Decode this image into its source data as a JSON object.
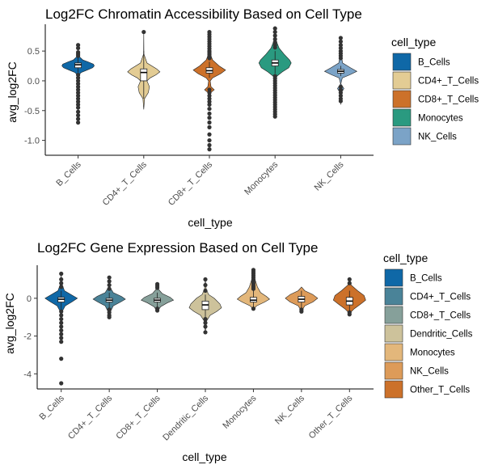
{
  "chart_data": [
    {
      "type": "violin",
      "title": "Log2FC Chromatin Accessibility Based on Cell Type",
      "xlabel": "cell_type",
      "ylabel": "avg_log2FC",
      "yticks": [
        "0.5",
        "0.0",
        "-0.5",
        "-1.0"
      ],
      "ytick_values": [
        0.5,
        0.0,
        -0.5,
        -1.0
      ],
      "ylim": [
        -1.25,
        0.95
      ],
      "grid": false,
      "legend_title": "cell_type",
      "legend_position": "right",
      "categories": [
        "B_Cells",
        "CD4+_T_Cells",
        "CD8+_T_Cells",
        "Monocytes",
        "NK_Cells"
      ],
      "colors": [
        "#0f68a7",
        "#e3cc94",
        "#cc712a",
        "#2a9a80",
        "#7ba3c7"
      ],
      "series": [
        {
          "category": "B_Cells",
          "median": 0.27,
          "q1": 0.22,
          "q3": 0.3,
          "whisker_low": 0.14,
          "whisker_high": 0.39,
          "violin": [
            [
              0.5,
              0.0
            ],
            [
              0.45,
              0.02
            ],
            [
              0.4,
              0.1
            ],
            [
              0.35,
              0.3
            ],
            [
              0.32,
              0.6
            ],
            [
              0.28,
              0.95
            ],
            [
              0.25,
              1.0
            ],
            [
              0.22,
              0.9
            ],
            [
              0.18,
              0.55
            ],
            [
              0.14,
              0.2
            ],
            [
              0.1,
              0.05
            ],
            [
              -0.2,
              0.03
            ],
            [
              -0.6,
              0.0
            ]
          ],
          "outliers": [
            0.6,
            0.55,
            0.48,
            0.45,
            0.42,
            0.1,
            0.05,
            0.0,
            -0.05,
            -0.1,
            -0.15,
            -0.2,
            -0.25,
            -0.3,
            -0.35,
            -0.4,
            -0.45,
            -0.52,
            -0.58,
            -0.64,
            -0.7
          ]
        },
        {
          "category": "CD4+_T_Cells",
          "median": 0.14,
          "q1": 0.0,
          "q3": 0.2,
          "whisker_low": -0.3,
          "whisker_high": 0.5,
          "violin": [
            [
              0.82,
              0.0
            ],
            [
              0.45,
              0.01
            ],
            [
              0.3,
              0.2
            ],
            [
              0.2,
              0.8
            ],
            [
              0.15,
              1.0
            ],
            [
              0.1,
              0.75
            ],
            [
              0.05,
              0.4
            ],
            [
              0.0,
              0.2
            ],
            [
              -0.1,
              0.35
            ],
            [
              -0.2,
              0.28
            ],
            [
              -0.3,
              0.05
            ],
            [
              -0.48,
              0.0
            ]
          ],
          "outliers": [
            0.82
          ]
        },
        {
          "category": "CD8+_T_Cells",
          "median": 0.17,
          "q1": 0.13,
          "q3": 0.22,
          "whisker_low": 0.05,
          "whisker_high": 0.32,
          "violin": [
            [
              0.8,
              0.0
            ],
            [
              0.6,
              0.02
            ],
            [
              0.45,
              0.05
            ],
            [
              0.35,
              0.2
            ],
            [
              0.25,
              0.6
            ],
            [
              0.18,
              1.0
            ],
            [
              0.12,
              0.7
            ],
            [
              0.05,
              0.2
            ],
            [
              0.0,
              0.05
            ],
            [
              -0.1,
              0.1
            ],
            [
              -0.15,
              0.3
            ],
            [
              -0.2,
              0.08
            ],
            [
              -0.3,
              0.02
            ],
            [
              -0.4,
              0.0
            ]
          ],
          "outliers": [
            0.82,
            0.78,
            0.74,
            0.7,
            0.66,
            0.62,
            0.58,
            0.54,
            0.5,
            0.47,
            0.44,
            0.41,
            0.38,
            -0.15,
            -0.2,
            -0.25,
            -0.3,
            -0.35,
            -0.4,
            -0.47,
            -0.55,
            -0.62,
            -0.7,
            -0.78,
            -0.9,
            -1.0,
            -1.08,
            -1.15
          ]
        },
        {
          "category": "Monocytes",
          "median": 0.3,
          "q1": 0.25,
          "q3": 0.35,
          "whisker_low": 0.12,
          "whisker_high": 0.5,
          "violin": [
            [
              0.9,
              0.0
            ],
            [
              0.7,
              0.03
            ],
            [
              0.55,
              0.25
            ],
            [
              0.45,
              0.55
            ],
            [
              0.35,
              0.9
            ],
            [
              0.3,
              1.0
            ],
            [
              0.22,
              0.85
            ],
            [
              0.15,
              0.45
            ],
            [
              0.08,
              0.12
            ],
            [
              0.0,
              0.04
            ],
            [
              -0.3,
              0.01
            ],
            [
              -0.6,
              0.0
            ]
          ],
          "outliers": [
            0.88,
            0.82,
            0.76,
            0.7,
            0.65,
            0.6,
            0.56,
            0.08,
            0.04,
            0.0,
            -0.04,
            -0.08,
            -0.12,
            -0.16,
            -0.2,
            -0.24,
            -0.28,
            -0.32,
            -0.36,
            -0.4,
            -0.44,
            -0.48,
            -0.52,
            -0.56,
            -0.6
          ]
        },
        {
          "category": "NK_Cells",
          "median": 0.16,
          "q1": 0.13,
          "q3": 0.19,
          "whisker_low": 0.08,
          "whisker_high": 0.25,
          "violin": [
            [
              0.7,
              0.0
            ],
            [
              0.45,
              0.02
            ],
            [
              0.3,
              0.12
            ],
            [
              0.22,
              0.6
            ],
            [
              0.16,
              1.0
            ],
            [
              0.1,
              0.55
            ],
            [
              0.05,
              0.1
            ],
            [
              -0.05,
              0.01
            ],
            [
              -0.13,
              0.2
            ],
            [
              -0.2,
              0.04
            ],
            [
              -0.4,
              0.0
            ]
          ],
          "outliers": [
            0.72,
            0.66,
            0.6,
            0.55,
            0.5,
            0.46,
            0.42,
            0.38,
            -0.1,
            -0.15,
            -0.2,
            -0.25,
            -0.3,
            -0.34
          ]
        }
      ]
    },
    {
      "type": "violin",
      "title": "Log2FC Gene Expression Based on Cell Type",
      "xlabel": "cell_type",
      "ylabel": "avg_log2FC",
      "yticks": [
        "0",
        "-2",
        "-4"
      ],
      "ytick_values": [
        0,
        -2,
        -4
      ],
      "ylim": [
        -4.8,
        1.75
      ],
      "grid": false,
      "legend_title": "cell_type",
      "legend_position": "right",
      "categories": [
        "B_Cells",
        "CD4+_T_Cells",
        "CD8+_T_Cells",
        "Dendritic_Cells",
        "Monocytes",
        "NK_Cells",
        "Other_T_Cells"
      ],
      "colors": [
        "#0f68a7",
        "#4a8398",
        "#86a09a",
        "#cdc29b",
        "#e3b77b",
        "#dd9b59",
        "#cc712a"
      ],
      "series": [
        {
          "category": "B_Cells",
          "median": -0.05,
          "q1": -0.2,
          "q3": 0.05,
          "whisker_low": -0.6,
          "whisker_high": 0.4,
          "violin": [
            [
              1.3,
              0.0
            ],
            [
              0.8,
              0.03
            ],
            [
              0.4,
              0.2
            ],
            [
              0.15,
              0.7
            ],
            [
              0.0,
              1.0
            ],
            [
              -0.2,
              0.65
            ],
            [
              -0.4,
              0.25
            ],
            [
              -0.7,
              0.06
            ],
            [
              -1.2,
              0.0
            ]
          ],
          "outliers": [
            1.3,
            1.0,
            0.8,
            0.6,
            -0.7,
            -0.9,
            -1.1,
            -1.3,
            -1.5,
            -1.7,
            -1.9,
            -2.1,
            -2.3,
            -3.2,
            -4.5
          ]
        },
        {
          "category": "CD4+_T_Cells",
          "median": -0.1,
          "q1": -0.2,
          "q3": 0.0,
          "whisker_low": -0.5,
          "whisker_high": 0.3,
          "violin": [
            [
              1.1,
              0.0
            ],
            [
              0.6,
              0.04
            ],
            [
              0.3,
              0.25
            ],
            [
              0.1,
              0.75
            ],
            [
              -0.05,
              1.0
            ],
            [
              -0.2,
              0.7
            ],
            [
              -0.4,
              0.25
            ],
            [
              -0.7,
              0.08
            ],
            [
              -1.0,
              0.0
            ]
          ],
          "outliers": [
            1.1,
            0.9,
            0.7,
            0.5,
            -0.6,
            -0.75,
            -0.9,
            -1.0
          ]
        },
        {
          "category": "CD8+_T_Cells",
          "median": -0.1,
          "q1": -0.2,
          "q3": 0.0,
          "whisker_low": -0.5,
          "whisker_high": 0.3,
          "violin": [
            [
              0.8,
              0.0
            ],
            [
              0.5,
              0.05
            ],
            [
              0.25,
              0.3
            ],
            [
              0.05,
              0.8
            ],
            [
              -0.1,
              1.0
            ],
            [
              -0.25,
              0.6
            ],
            [
              -0.45,
              0.2
            ],
            [
              -0.7,
              0.0
            ]
          ],
          "outliers": [
            0.75,
            0.65,
            0.55,
            -0.55,
            -0.65
          ]
        },
        {
          "category": "Dendritic_Cells",
          "median": -0.35,
          "q1": -0.6,
          "q3": -0.15,
          "whisker_low": -1.0,
          "whisker_high": 0.2,
          "violin": [
            [
              1.0,
              0.0
            ],
            [
              0.5,
              0.05
            ],
            [
              0.2,
              0.2
            ],
            [
              0.0,
              0.55
            ],
            [
              -0.3,
              0.9
            ],
            [
              -0.5,
              1.0
            ],
            [
              -0.7,
              0.7
            ],
            [
              -0.9,
              0.3
            ],
            [
              -1.2,
              0.08
            ],
            [
              -1.8,
              0.0
            ]
          ],
          "outliers": [
            1.0,
            0.7,
            0.4,
            -1.1,
            -1.3,
            -1.5,
            -1.8
          ]
        },
        {
          "category": "Monocytes",
          "median": -0.1,
          "q1": -0.2,
          "q3": 0.05,
          "whisker_low": -0.5,
          "whisker_high": 0.4,
          "violin": [
            [
              1.5,
              0.0
            ],
            [
              1.0,
              0.1
            ],
            [
              0.6,
              0.25
            ],
            [
              0.3,
              0.45
            ],
            [
              0.1,
              0.8
            ],
            [
              -0.05,
              1.0
            ],
            [
              -0.2,
              0.7
            ],
            [
              -0.4,
              0.2
            ],
            [
              -0.6,
              0.0
            ]
          ],
          "outliers": [
            1.5,
            1.4,
            1.3,
            1.2,
            1.1,
            1.0,
            0.9,
            0.8,
            0.7,
            0.6,
            0.5,
            -0.55
          ]
        },
        {
          "category": "NK_Cells",
          "median": -0.05,
          "q1": -0.2,
          "q3": 0.1,
          "whisker_low": -0.5,
          "whisker_high": 0.4,
          "violin": [
            [
              0.6,
              0.0
            ],
            [
              0.4,
              0.2
            ],
            [
              0.2,
              0.7
            ],
            [
              0.0,
              1.0
            ],
            [
              -0.2,
              0.7
            ],
            [
              -0.4,
              0.2
            ],
            [
              -0.7,
              0.0
            ]
          ],
          "outliers": [
            -0.6,
            -0.7
          ]
        },
        {
          "category": "Other_T_Cells",
          "median": -0.15,
          "q1": -0.35,
          "q3": 0.05,
          "whisker_low": -0.7,
          "whisker_high": 0.4,
          "violin": [
            [
              1.0,
              0.0
            ],
            [
              0.7,
              0.1
            ],
            [
              0.4,
              0.5
            ],
            [
              0.15,
              0.9
            ],
            [
              -0.1,
              1.0
            ],
            [
              -0.3,
              0.7
            ],
            [
              -0.55,
              0.3
            ],
            [
              -0.8,
              0.0
            ]
          ],
          "outliers": [
            1.0,
            0.8,
            -0.75,
            -0.85
          ]
        }
      ]
    }
  ]
}
